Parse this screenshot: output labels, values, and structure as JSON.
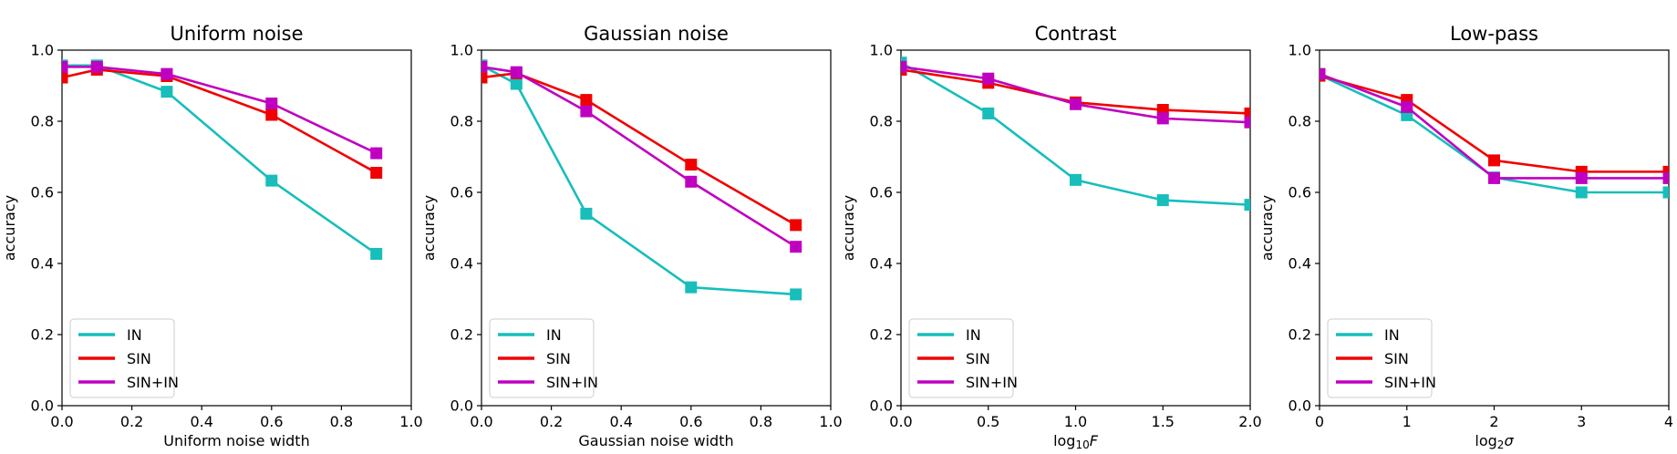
{
  "colors": {
    "IN": "#17bebb",
    "SIN": "#f00000",
    "SIN+IN": "#c000c0"
  },
  "legend_placement": "lower-left",
  "chart_data": [
    {
      "type": "line",
      "title": "Uniform noise",
      "xlabel": "Uniform noise width",
      "ylabel": "accuracy",
      "xlim": [
        0.0,
        1.0
      ],
      "ylim": [
        0.0,
        1.0
      ],
      "xticks": [
        0.0,
        0.2,
        0.4,
        0.6,
        0.8,
        1.0
      ],
      "xtick_labels": [
        "0.0",
        "0.2",
        "0.4",
        "0.6",
        "0.8",
        "1.0"
      ],
      "yticks": [
        0.0,
        0.2,
        0.4,
        0.6,
        0.8,
        1.0
      ],
      "ytick_labels": [
        "0.0",
        "0.2",
        "0.4",
        "0.6",
        "0.8",
        "1.0"
      ],
      "grid": false,
      "x": [
        0.0,
        0.1,
        0.3,
        0.6,
        0.9
      ],
      "series": [
        {
          "name": "IN",
          "values": [
            0.957,
            0.957,
            0.883,
            0.633,
            0.427
          ]
        },
        {
          "name": "SIN",
          "values": [
            0.923,
            0.945,
            0.927,
            0.818,
            0.655
          ]
        },
        {
          "name": "SIN+IN",
          "values": [
            0.953,
            0.953,
            0.933,
            0.85,
            0.71
          ]
        }
      ]
    },
    {
      "type": "line",
      "title": "Gaussian noise",
      "xlabel": "Gaussian noise width",
      "ylabel": "accuracy",
      "xlim": [
        0.0,
        1.0
      ],
      "ylim": [
        0.0,
        1.0
      ],
      "xticks": [
        0.0,
        0.2,
        0.4,
        0.6,
        0.8,
        1.0
      ],
      "xtick_labels": [
        "0.0",
        "0.2",
        "0.4",
        "0.6",
        "0.8",
        "1.0"
      ],
      "yticks": [
        0.0,
        0.2,
        0.4,
        0.6,
        0.8,
        1.0
      ],
      "ytick_labels": [
        "0.0",
        "0.2",
        "0.4",
        "0.6",
        "0.8",
        "1.0"
      ],
      "grid": false,
      "x": [
        0.0,
        0.1,
        0.3,
        0.6,
        0.9
      ],
      "series": [
        {
          "name": "IN",
          "values": [
            0.957,
            0.905,
            0.54,
            0.333,
            0.313
          ]
        },
        {
          "name": "SIN",
          "values": [
            0.923,
            0.935,
            0.86,
            0.678,
            0.508
          ]
        },
        {
          "name": "SIN+IN",
          "values": [
            0.953,
            0.938,
            0.828,
            0.63,
            0.447
          ]
        }
      ]
    },
    {
      "type": "line",
      "title": "Contrast",
      "xlabel": "log₁₀F",
      "ylabel": "accuracy",
      "xlim": [
        0.0,
        2.0
      ],
      "ylim": [
        0.0,
        1.0
      ],
      "xticks": [
        0.0,
        0.5,
        1.0,
        1.5,
        2.0
      ],
      "xtick_labels": [
        "0.0",
        "0.5",
        "1.0",
        "1.5",
        "2.0"
      ],
      "yticks": [
        0.0,
        0.2,
        0.4,
        0.6,
        0.8,
        1.0
      ],
      "ytick_labels": [
        "0.0",
        "0.2",
        "0.4",
        "0.6",
        "0.8",
        "1.0"
      ],
      "grid": false,
      "x": [
        0.0,
        0.5,
        1.0,
        1.5,
        2.0
      ],
      "series": [
        {
          "name": "IN",
          "values": [
            0.965,
            0.822,
            0.635,
            0.578,
            0.565
          ]
        },
        {
          "name": "SIN",
          "values": [
            0.945,
            0.908,
            0.853,
            0.832,
            0.822
          ]
        },
        {
          "name": "SIN+IN",
          "values": [
            0.953,
            0.92,
            0.848,
            0.808,
            0.797
          ]
        }
      ]
    },
    {
      "type": "line",
      "title": "Low-pass",
      "xlabel": "log₂σ",
      "ylabel": "accuracy",
      "xlim": [
        0,
        4
      ],
      "ylim": [
        0.0,
        1.0
      ],
      "xticks": [
        0,
        1,
        2,
        3,
        4
      ],
      "xtick_labels": [
        "0",
        "1",
        "2",
        "3",
        "4"
      ],
      "yticks": [
        0.0,
        0.2,
        0.4,
        0.6,
        0.8,
        1.0
      ],
      "ytick_labels": [
        "0.0",
        "0.2",
        "0.4",
        "0.6",
        "0.8",
        "1.0"
      ],
      "grid": false,
      "x": [
        0,
        1,
        2,
        3,
        4
      ],
      "series": [
        {
          "name": "IN",
          "values": [
            0.93,
            0.817,
            0.642,
            0.6,
            0.6
          ]
        },
        {
          "name": "SIN",
          "values": [
            0.928,
            0.86,
            0.69,
            0.658,
            0.658
          ]
        },
        {
          "name": "SIN+IN",
          "values": [
            0.933,
            0.84,
            0.64,
            0.64,
            0.64
          ]
        }
      ]
    }
  ]
}
